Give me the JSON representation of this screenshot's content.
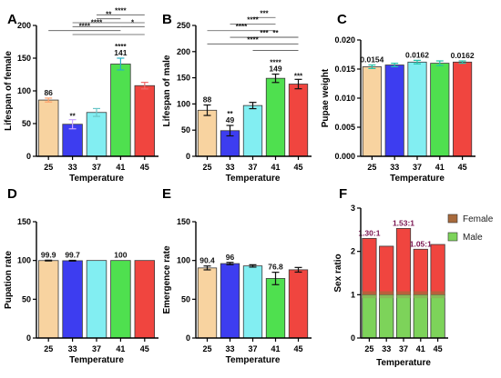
{
  "colors": {
    "c25": "#f8d3a0",
    "c33": "#3d3df0",
    "c37": "#82eef2",
    "c41": "#4fe04f",
    "c45": "#f0453f",
    "female": "#a86a3c",
    "male": "#7dd35a",
    "error": "#111111",
    "errorA": [
      "#ff9f6a",
      "#c9a4ff",
      "#6bc6c8",
      "#27b0c4",
      "#f06a6a"
    ],
    "errorC": "#23c1a7"
  },
  "chart_data": [
    {
      "panel": "A",
      "type": "bar",
      "categories": [
        "25",
        "33",
        "37",
        "41",
        "45"
      ],
      "values": [
        86,
        49,
        67,
        141,
        108
      ],
      "errors": [
        3,
        7,
        6,
        9,
        5
      ],
      "value_labels": [
        "86",
        "",
        "",
        "141",
        ""
      ],
      "bar_sig": [
        "",
        "**",
        "",
        "****",
        ""
      ],
      "xlabel": "Temperature",
      "ylabel": "Lifespan of female",
      "ylim": [
        0,
        200
      ],
      "yticks": [
        "0",
        "50",
        "100",
        "150",
        "200"
      ],
      "brackets": [
        {
          "from": 2,
          "to": 3,
          "label": "**",
          "level": 4
        },
        {
          "from": 2,
          "to": 4,
          "label": "****",
          "level": 5
        },
        {
          "from": 1,
          "to": 3,
          "label": "****",
          "level": 2
        },
        {
          "from": 3,
          "to": 4,
          "label": "*",
          "level": 2
        },
        {
          "from": 1,
          "to": 4,
          "label": "",
          "level": 3
        },
        {
          "from": 0,
          "to": 3,
          "label": "****",
          "level": 1
        },
        {
          "from": 1,
          "to": 4,
          "label": "",
          "level": 0
        }
      ]
    },
    {
      "panel": "B",
      "type": "bar",
      "categories": [
        "25",
        "33",
        "37",
        "41",
        "45"
      ],
      "values": [
        88,
        49,
        97,
        149,
        138
      ],
      "errors": [
        10,
        10,
        6,
        8,
        9
      ],
      "value_labels": [
        "88",
        "49",
        "",
        "149",
        ""
      ],
      "bar_sig": [
        "",
        "**",
        "",
        "****",
        "***"
      ],
      "xlabel": "Temperature",
      "ylabel": "Lifespan of male",
      "ylim": [
        0,
        250
      ],
      "yticks": [
        "0",
        "50",
        "100",
        "150",
        "200",
        "250"
      ],
      "brackets": [
        {
          "from": 2,
          "to": 3,
          "label": "***",
          "level": 5
        },
        {
          "from": 1,
          "to": 3,
          "label": "****",
          "level": 4
        },
        {
          "from": 0,
          "to": 3,
          "label": "****",
          "level": 3
        },
        {
          "from": 1,
          "to": 4,
          "label": "***",
          "level": 2
        },
        {
          "from": 2,
          "to": 4,
          "label": "**",
          "level": 2
        },
        {
          "from": 0,
          "to": 4,
          "label": "****",
          "level": 1
        },
        {
          "from": 2,
          "to": 4,
          "label": "",
          "level": 0
        }
      ]
    },
    {
      "panel": "C",
      "type": "bar",
      "categories": [
        "25",
        "33",
        "37",
        "41",
        "45"
      ],
      "values": [
        0.0154,
        0.0157,
        0.0162,
        0.016,
        0.0162
      ],
      "errors": [
        0.0003,
        0.0003,
        0.0003,
        0.0004,
        0.0002
      ],
      "value_labels": [
        "0.0154",
        "",
        "0.0162",
        "",
        "0.0162"
      ],
      "xlabel": "Temperature",
      "ylabel": "Pupae weight",
      "ylim": [
        0,
        0.02
      ],
      "yticks": [
        "0.000",
        "0.005",
        "0.010",
        "0.015",
        "0.020"
      ]
    },
    {
      "panel": "D",
      "type": "bar",
      "categories": [
        "25",
        "33",
        "37",
        "41",
        "45"
      ],
      "values": [
        99.9,
        99.7,
        100,
        100,
        100
      ],
      "errors": [
        0.5,
        0.5,
        0,
        0,
        0
      ],
      "value_labels": [
        "99.9",
        "99.7",
        "",
        "100",
        ""
      ],
      "xlabel": "Temperature",
      "ylabel": "Pupation rate",
      "ylim": [
        0,
        150
      ],
      "yticks": [
        "0",
        "50",
        "100",
        "150"
      ]
    },
    {
      "panel": "E",
      "type": "bar",
      "categories": [
        "25",
        "33",
        "37",
        "41",
        "45"
      ],
      "values": [
        90.4,
        96,
        93,
        76.8,
        88
      ],
      "errors": [
        2.5,
        1.5,
        1.5,
        8,
        3
      ],
      "value_labels": [
        "90.4",
        "96",
        "",
        "76.8",
        ""
      ],
      "xlabel": "Temperature",
      "ylabel": "Emergence rate",
      "ylim": [
        0,
        150
      ],
      "yticks": [
        "0",
        "50",
        "100",
        "150"
      ]
    },
    {
      "panel": "F",
      "type": "bar",
      "stacked": true,
      "categories": [
        "25",
        "33",
        "37",
        "41",
        "45"
      ],
      "series": [
        {
          "name": "Male",
          "values": [
            1.0,
            1.0,
            1.0,
            1.0,
            1.0
          ]
        },
        {
          "name": "Female",
          "values": [
            1.3,
            1.12,
            1.53,
            1.05,
            1.16
          ]
        }
      ],
      "ratio_labels": [
        "1.30:1",
        "",
        "1.53:1",
        "1.05:1",
        ""
      ],
      "xlabel": "Temperature",
      "ylabel": "Sex ratio",
      "ylim": [
        0,
        3
      ],
      "yticks": [
        "0",
        "1",
        "2",
        "3"
      ],
      "legend": "top-right"
    }
  ]
}
